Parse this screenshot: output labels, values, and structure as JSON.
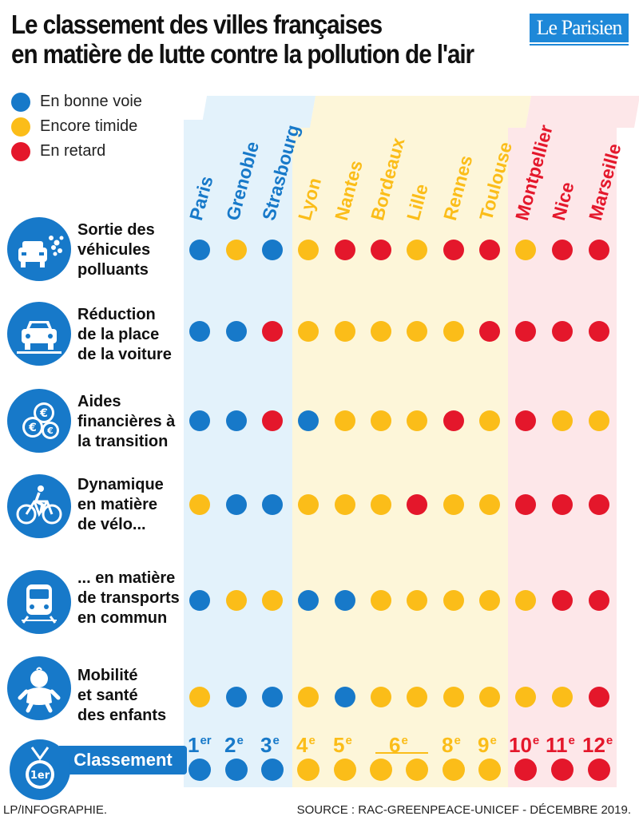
{
  "title": {
    "line1": "Le classement des villes françaises",
    "line2": "en matière de lutte contre la pollution de l'air"
  },
  "logo": "Le Parisien",
  "colors": {
    "blue": "#1779c9",
    "yellow": "#fbbd19",
    "red": "#e4172b",
    "band_blue": "#e3f2fb",
    "band_yellow": "#fdf6d9",
    "band_red": "#fde7e9"
  },
  "legend": [
    {
      "label": "En bonne voie",
      "status": "B"
    },
    {
      "label": "Encore timide",
      "status": "Y"
    },
    {
      "label": "En retard",
      "status": "R"
    }
  ],
  "cities": [
    {
      "name": "Paris",
      "group": "B"
    },
    {
      "name": "Grenoble",
      "group": "B"
    },
    {
      "name": "Strasbourg",
      "group": "B"
    },
    {
      "name": "Lyon",
      "group": "Y"
    },
    {
      "name": "Nantes",
      "group": "Y"
    },
    {
      "name": "Bordeaux",
      "group": "Y"
    },
    {
      "name": "Lille",
      "group": "Y"
    },
    {
      "name": "Rennes",
      "group": "Y"
    },
    {
      "name": "Toulouse",
      "group": "Y"
    },
    {
      "name": "Montpellier",
      "group": "R"
    },
    {
      "name": "Nice",
      "group": "R"
    },
    {
      "name": "Marseille",
      "group": "R"
    }
  ],
  "criteria": [
    {
      "lines": [
        "Sortie des",
        "véhicules",
        "polluants"
      ],
      "icon": "polluting-car-icon",
      "values": [
        "B",
        "Y",
        "B",
        "Y",
        "R",
        "R",
        "Y",
        "R",
        "R",
        "Y",
        "R",
        "R"
      ]
    },
    {
      "lines": [
        "Réduction",
        "de la place",
        "de la voiture"
      ],
      "icon": "car-front-icon",
      "values": [
        "B",
        "B",
        "R",
        "Y",
        "Y",
        "Y",
        "Y",
        "Y",
        "R",
        "R",
        "R",
        "R"
      ]
    },
    {
      "lines": [
        "Aides",
        "financières à",
        "la transition"
      ],
      "icon": "euro-coins-icon",
      "values": [
        "B",
        "B",
        "R",
        "B",
        "Y",
        "Y",
        "Y",
        "R",
        "Y",
        "R",
        "Y",
        "Y"
      ]
    },
    {
      "lines": [
        "Dynamique",
        "en matière",
        "de vélo..."
      ],
      "icon": "bicycle-icon",
      "values": [
        "Y",
        "B",
        "B",
        "Y",
        "Y",
        "Y",
        "R",
        "Y",
        "Y",
        "R",
        "R",
        "R"
      ]
    },
    {
      "lines": [
        "... en matière",
        "de transports",
        "en commun"
      ],
      "icon": "train-icon",
      "values": [
        "B",
        "Y",
        "Y",
        "B",
        "B",
        "Y",
        "Y",
        "Y",
        "Y",
        "Y",
        "R",
        "R"
      ]
    },
    {
      "lines": [
        "Mobilité",
        "et santé",
        "des enfants"
      ],
      "icon": "baby-icon",
      "values": [
        "Y",
        "B",
        "B",
        "Y",
        "B",
        "Y",
        "Y",
        "Y",
        "Y",
        "Y",
        "Y",
        "R"
      ]
    }
  ],
  "ranking": {
    "label": "Classement",
    "icon_text": "1er",
    "entries": [
      {
        "num": "1",
        "sup": "er"
      },
      {
        "num": "2",
        "sup": "e"
      },
      {
        "num": "3",
        "sup": "e"
      },
      {
        "num": "4",
        "sup": "e"
      },
      {
        "num": "5",
        "sup": "e"
      },
      {
        "num": "6",
        "sup": "e"
      },
      {
        "num": "8",
        "sup": "e"
      },
      {
        "num": "9",
        "sup": "e"
      },
      {
        "num": "10",
        "sup": "e"
      },
      {
        "num": "11",
        "sup": "e"
      },
      {
        "num": "12",
        "sup": "e"
      }
    ],
    "values": [
      "B",
      "B",
      "B",
      "Y",
      "Y",
      "Y",
      "Y",
      "Y",
      "Y",
      "R",
      "R",
      "R"
    ]
  },
  "footer": {
    "credit": "LP/INFOGRAPHIE.",
    "source": "SOURCE : RAC-GREENPEACE-UNICEF - DÉCEMBRE 2019."
  }
}
